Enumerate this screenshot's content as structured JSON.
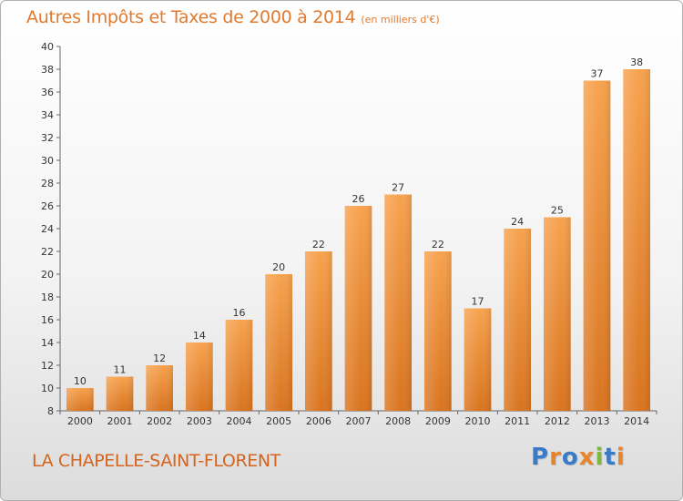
{
  "header": {
    "title": "Autres Impôts et Taxes de 2000 à 2014",
    "subtitle": "(en milliers d'€)"
  },
  "footer": {
    "location": "LA CHAPELLE-SAINT-FLORENT",
    "logo_text": "Proxiti",
    "logo_letters": [
      {
        "char": "P",
        "color": "#3a7bc8"
      },
      {
        "char": "r",
        "color": "#e8842c"
      },
      {
        "char": "o",
        "color": "#3a7bc8"
      },
      {
        "char": "x",
        "color": "#e8842c"
      },
      {
        "char": "i",
        "color": "#7cb83a"
      },
      {
        "char": "t",
        "color": "#3a7bc8"
      },
      {
        "char": "i",
        "color": "#e8842c"
      }
    ]
  },
  "colors": {
    "bar_top": "#f7a24e",
    "bar_bottom": "#d9741f",
    "accent": "#e07a2e"
  },
  "chart_data": {
    "type": "bar",
    "title": "Autres Impôts et Taxes de 2000 à 2014",
    "subtitle": "(en milliers d'€)",
    "xlabel": "",
    "ylabel": "",
    "categories": [
      "2000",
      "2001",
      "2002",
      "2003",
      "2004",
      "2005",
      "2006",
      "2007",
      "2008",
      "2009",
      "2010",
      "2011",
      "2012",
      "2013",
      "2014"
    ],
    "values": [
      10,
      11,
      12,
      14,
      16,
      20,
      22,
      26,
      27,
      22,
      17,
      24,
      25,
      37,
      38
    ],
    "ylim": [
      8,
      40
    ],
    "yticks": [
      8,
      10,
      12,
      14,
      16,
      18,
      20,
      22,
      24,
      26,
      28,
      30,
      32,
      34,
      36,
      38,
      40
    ],
    "grid": false,
    "data_labels": true
  }
}
